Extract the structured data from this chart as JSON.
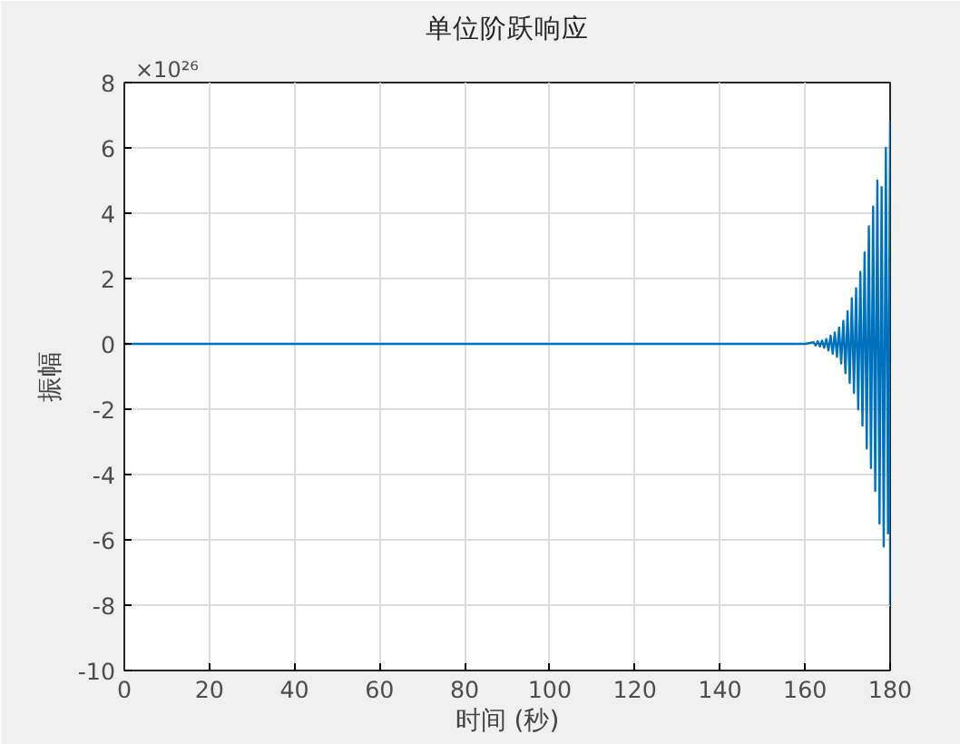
{
  "chart_data": {
    "type": "line",
    "title": "单位阶跃响应",
    "xlabel": "时间 (秒)",
    "ylabel": "振幅",
    "annotations": [
      "×10²⁶"
    ],
    "x": [
      0,
      160,
      162,
      162.5,
      163,
      163.5,
      164,
      164.5,
      165,
      165.5,
      166,
      166.5,
      167,
      167.5,
      168,
      168.5,
      169,
      169.5,
      170,
      170.5,
      171,
      171.5,
      172,
      172.5,
      173,
      173.5,
      174,
      174.5,
      175,
      175.5,
      176,
      176.5,
      177,
      177.5,
      178,
      178.5,
      179,
      179.5,
      180,
      180
    ],
    "series": [
      {
        "color": "#0072bd",
        "values": [
          0,
          0,
          0.05,
          -0.05,
          0.08,
          -0.08,
          0.1,
          -0.12,
          0.15,
          -0.2,
          0.25,
          -0.3,
          0.35,
          -0.4,
          0.5,
          -0.6,
          0.7,
          -0.9,
          1.0,
          -1.2,
          1.4,
          -1.5,
          1.7,
          -2.0,
          2.2,
          -2.5,
          2.8,
          -3.2,
          3.6,
          -3.8,
          4.2,
          -4.5,
          5.0,
          -5.5,
          4.8,
          -6.2,
          6.0,
          -5.8,
          6.8,
          -8.0
        ]
      }
    ],
    "xlim": [
      0,
      180
    ],
    "xticks": [
      0,
      20,
      40,
      60,
      80,
      100,
      120,
      140,
      160,
      180
    ],
    "ylim": [
      -10,
      8
    ],
    "yticks": [
      -10,
      -8,
      -6,
      -4,
      -2,
      0,
      2,
      4,
      6,
      8
    ],
    "grid": true
  }
}
